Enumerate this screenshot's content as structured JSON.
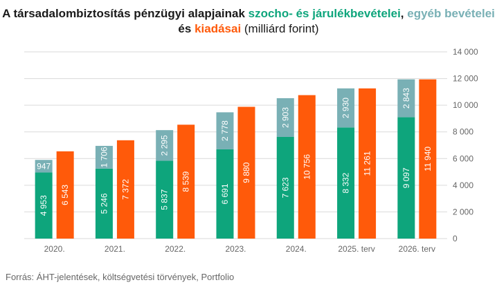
{
  "title": {
    "part1": "A társadalombiztosítás pénzügyi alapjainak ",
    "part2": "szocho- és járulékbevételei",
    "part3": ", ",
    "part4": "egyéb bevételei",
    "part5": " és ",
    "part6": "kiadásai",
    "part7": " (milliárd forint)"
  },
  "source": "Forrás: ÁHT-jelentések,  költségvetési törvények, Portfolio",
  "colors": {
    "szocho": "#0ea57c",
    "egyeb": "#79b0b5",
    "kiadas": "#ff5a0a",
    "grid": "#d9d9d9",
    "tick": "#666666"
  },
  "chart_data": {
    "type": "bar",
    "stacked_left": true,
    "categories": [
      "2020.",
      "2021.",
      "2022.",
      "2023.",
      "2024.",
      "2025. terv",
      "2026. terv"
    ],
    "series": [
      {
        "name": "szocho- és járulékbevételei",
        "group": "bevetel",
        "values": [
          4953,
          5246,
          5837,
          6691,
          7623,
          8332,
          9097
        ],
        "labels": [
          "4 953",
          "5 246",
          "5 837",
          "6 691",
          "7 623",
          "8 332",
          "9 097"
        ]
      },
      {
        "name": "egyéb bevételei",
        "group": "bevetel",
        "values": [
          947,
          1706,
          2295,
          2778,
          2903,
          2930,
          2843
        ],
        "labels": [
          "947",
          "1 706",
          "2 295",
          "2 778",
          "2 903",
          "2 930",
          "2 843"
        ]
      },
      {
        "name": "kiadásai",
        "group": "kiadas",
        "values": [
          6543,
          7372,
          8539,
          9880,
          10756,
          11261,
          11940
        ],
        "labels": [
          "6 543",
          "7 372",
          "8 539",
          "9 880",
          "10 756",
          "11 261",
          "11 940"
        ]
      }
    ],
    "ylim": [
      0,
      14000
    ],
    "yticks": [
      0,
      2000,
      4000,
      6000,
      8000,
      10000,
      12000,
      14000
    ],
    "ytick_labels": [
      "0",
      "2 000",
      "4 000",
      "6 000",
      "8 000",
      "10 000",
      "12 000",
      "14 000"
    ],
    "yaxis_side": "right",
    "grid": true
  }
}
